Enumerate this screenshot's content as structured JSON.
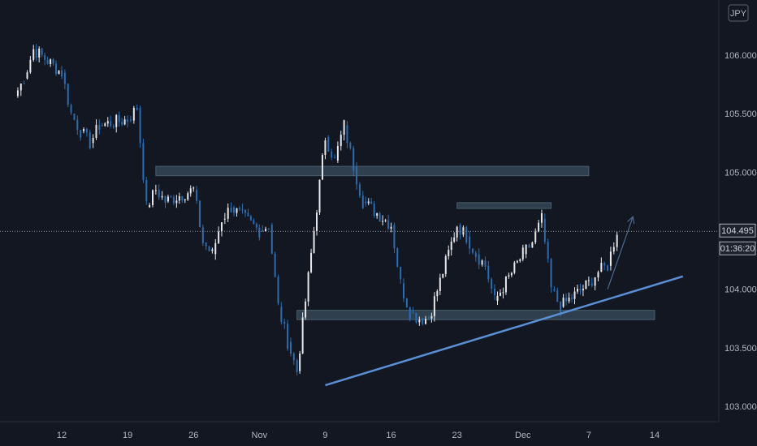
{
  "currency_badge": "JPY",
  "last_price_label": "104.495",
  "countdown_label": "01:36:20",
  "colors": {
    "background": "#131722",
    "candle_up": "#e8e8ec",
    "candle_down": "#2c6db0",
    "zone_fill": "#3a4d5c",
    "trendline": "#5a8fd6",
    "axis_text": "#b2b5be",
    "arrow": "#4e6a8a"
  },
  "chart_data": {
    "type": "line",
    "description": "Intraday candlestick price series (USD/JPY) with support/resistance zones, rising trendline and projected upward arrow",
    "x_ticks": [
      "12",
      "19",
      "26",
      "Nov",
      "9",
      "16",
      "23",
      "Dec",
      "7",
      "14"
    ],
    "y_ticks": [
      "106.000",
      "105.500",
      "105.000",
      "104.000",
      "103.500",
      "103.000"
    ],
    "ylim": [
      102.95,
      106.45
    ],
    "last_price": 104.495,
    "series": [
      {
        "x": [
          "2020-10-07",
          "2020-10-08",
          "2020-10-09",
          "2020-10-12",
          "2020-10-13",
          "2020-10-14",
          "2020-10-15",
          "2020-10-16",
          "2020-10-19",
          "2020-10-20",
          "2020-10-21",
          "2020-10-22",
          "2020-10-23",
          "2020-10-26",
          "2020-10-27",
          "2020-10-28",
          "2020-10-29",
          "2020-10-30",
          "2020-11-02",
          "2020-11-03",
          "2020-11-04",
          "2020-11-05",
          "2020-11-06",
          "2020-11-09",
          "2020-11-10",
          "2020-11-11",
          "2020-11-12",
          "2020-11-13",
          "2020-11-16",
          "2020-11-17",
          "2020-11-18",
          "2020-11-19",
          "2020-11-20",
          "2020-11-23",
          "2020-11-24",
          "2020-11-25",
          "2020-11-26",
          "2020-11-27",
          "2020-11-30",
          "2020-12-01",
          "2020-12-02",
          "2020-12-03",
          "2020-12-04",
          "2020-12-07",
          "2020-12-08",
          "2020-12-09",
          "2020-12-10"
        ],
        "values": [
          105.65,
          105.8,
          106.05,
          105.85,
          105.5,
          105.35,
          105.25,
          105.4,
          105.45,
          105.55,
          104.7,
          104.85,
          104.75,
          104.85,
          104.4,
          104.3,
          104.6,
          104.7,
          104.5,
          104.55,
          103.85,
          103.55,
          103.3,
          105.3,
          105.1,
          105.4,
          105.05,
          104.75,
          104.55,
          104.05,
          103.8,
          103.75,
          103.75,
          104.55,
          104.45,
          104.3,
          104.2,
          103.9,
          104.3,
          104.4,
          104.6,
          104.0,
          103.85,
          104.05,
          104.15,
          104.2,
          104.5
        ]
      }
    ],
    "zones": [
      {
        "name": "upper-resistance",
        "y_low": 104.97,
        "y_high": 105.05,
        "x_start": "2020-10-22",
        "x_end": "2020-12-07"
      },
      {
        "name": "mid-resistance",
        "y_low": 104.69,
        "y_high": 104.74,
        "x_start": "2020-11-23",
        "x_end": "2020-12-03"
      },
      {
        "name": "support",
        "y_low": 103.74,
        "y_high": 103.82,
        "x_start": "2020-11-06",
        "x_end": "2020-12-14"
      }
    ],
    "trendline": {
      "x_start": "2020-11-09",
      "y_start": 103.18,
      "x_end": "2020-12-17",
      "y_end": 104.11
    },
    "projection_arrow": {
      "x_start": "2020-12-09",
      "y_start": 104.0,
      "x_end": "2020-12-11",
      "y_end": 104.55
    },
    "grid": false
  }
}
